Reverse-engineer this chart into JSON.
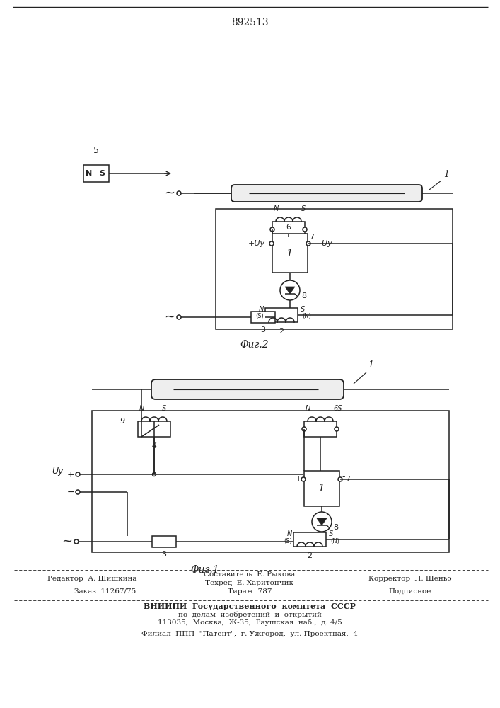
{
  "patent_number": "892513",
  "background_color": "#ffffff",
  "line_color": "#222222",
  "fig_width": 7.07,
  "fig_height": 10.0,
  "dpi": 100,
  "footer_line1_left": "Редактор  А. Шишкина",
  "footer_composit": "Составитель  Е. Рыкова",
  "footer_techred": "Техред  Е. Харитончик",
  "footer_line1_right": "Корректор  Л. Шеньо",
  "footer_order": "Заказ  11267/75",
  "footer_tirazh": "Тираж  787",
  "footer_podpis": "Подписное",
  "footer_vniipи": "ВНИИПИ  Государственного  комитета  СССР",
  "footer_dela": "по  делам  изобретений  и  открытий",
  "footer_addr": "113035,  Москва,  Ж-35,  Раушская  наб.,  д. 4/5",
  "footer_filial": "Филиал  ППП  \"Патент\",  г. Ужгород,  ул. Проектная,  4",
  "fig1_caption": "Фиг.1",
  "fig2_caption": "Фиг.2"
}
